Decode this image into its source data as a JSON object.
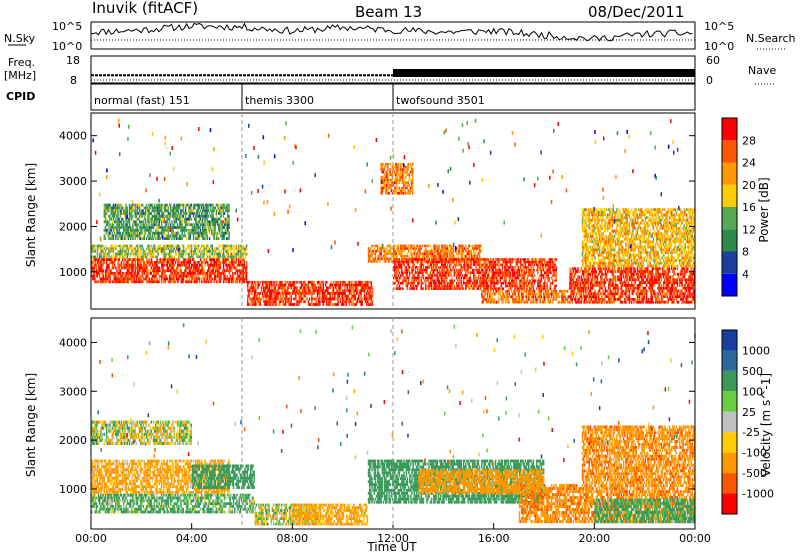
{
  "header": {
    "title": "Inuvik (fitACF)",
    "beam": "Beam 13",
    "date": "08/Dec/2011"
  },
  "colors": {
    "power": [
      "#0000ff",
      "#1a3fa0",
      "#2c8a4a",
      "#55aa55",
      "#ffcc00",
      "#ff9900",
      "#ff5500",
      "#ff0000"
    ],
    "velocity": [
      "#1a3fa0",
      "#2c6a9a",
      "#3a9a5a",
      "#66cc44",
      "#c0c0c0",
      "#ffcc00",
      "#ff9900",
      "#ff5500",
      "#ff0000"
    ]
  },
  "chart_data": [
    {
      "type": "line",
      "panel": "N.Sky / N.Search",
      "left_label": "N.Sky",
      "right_label": "N.Search",
      "left_ticks": [
        "10^5",
        "10^0"
      ],
      "right_ticks": [
        "10^5",
        "10^0"
      ],
      "x": [
        "00:00",
        "02:00",
        "04:00",
        "06:00",
        "08:00",
        "10:00",
        "12:00",
        "14:00",
        "16:00",
        "18:00",
        "20:00",
        "22:00",
        "24:00"
      ],
      "series": [
        {
          "name": "N.Sky",
          "values": [
            3.2,
            3.6,
            4.4,
            4.2,
            3.4,
            4.1,
            3.6,
            3.2,
            3.4,
            2.6,
            1.8,
            2.8,
            3.0
          ]
        },
        {
          "name": "N.Search",
          "values": [
            1.6,
            1.6,
            1.6,
            1.6,
            1.6,
            1.6,
            1.6,
            1.6,
            1.6,
            1.6,
            1.6,
            1.6,
            1.6
          ]
        }
      ],
      "xlim": [
        0,
        24
      ],
      "ylim": [
        0,
        5
      ]
    },
    {
      "type": "line",
      "panel": "Freq / Nave",
      "left_label": "Freq.",
      "left_unit": "[MHz]",
      "right_label": "Nave",
      "left_ticks": [
        "18",
        "8"
      ],
      "right_ticks": [
        "60",
        "0"
      ],
      "series": [
        {
          "name": "Freq",
          "segments": [
            {
              "x0": 0,
              "x1": 12,
              "value": 10.7
            },
            {
              "x0": 12,
              "x1": 24,
              "value": 11.6
            }
          ]
        },
        {
          "name": "Nave",
          "value": 2
        }
      ],
      "xlim": [
        0,
        24
      ],
      "ylim": [
        8,
        18
      ]
    },
    {
      "type": "table",
      "panel": "CPID",
      "label": "CPID",
      "modes": [
        {
          "name": "normal (fast) 151",
          "start": 0,
          "end": 6
        },
        {
          "name": "themis 3300",
          "start": 6,
          "end": 12
        },
        {
          "name": "twofsound 3501",
          "start": 12,
          "end": 24
        }
      ]
    },
    {
      "type": "heatmap",
      "panel": "Power",
      "ylabel": "Slant Range [km]",
      "xlim": [
        0,
        24
      ],
      "ylim": [
        180,
        4500
      ],
      "yticks": [
        1000,
        2000,
        3000,
        4000
      ],
      "colorbar": {
        "label": "Power [dB]",
        "ticks": [
          4,
          8,
          12,
          16,
          20,
          24,
          28
        ],
        "range": [
          0,
          32
        ]
      },
      "regions": [
        {
          "t0": 0.0,
          "t1": 6.2,
          "r0": 750,
          "r1": 1300,
          "level": 28
        },
        {
          "t0": 0.0,
          "t1": 6.2,
          "r0": 1300,
          "r1": 1600,
          "level": 16
        },
        {
          "t0": 0.5,
          "t1": 5.5,
          "r0": 1700,
          "r1": 2500,
          "level": 12
        },
        {
          "t0": 6.2,
          "t1": 11.2,
          "r0": 250,
          "r1": 800,
          "level": 28
        },
        {
          "t0": 11.0,
          "t1": 15.5,
          "r0": 1200,
          "r1": 1600,
          "level": 24
        },
        {
          "t0": 12.0,
          "t1": 18.5,
          "r0": 600,
          "r1": 1300,
          "level": 28
        },
        {
          "t0": 15.5,
          "t1": 19.0,
          "r0": 300,
          "r1": 600,
          "level": 24
        },
        {
          "t0": 19.0,
          "t1": 24.0,
          "r0": 300,
          "r1": 1100,
          "level": 28
        },
        {
          "t0": 19.5,
          "t1": 24.0,
          "r0": 1100,
          "r1": 2400,
          "level": 20
        },
        {
          "t0": 11.5,
          "t1": 12.8,
          "r0": 2700,
          "r1": 3400,
          "level": 24
        }
      ]
    },
    {
      "type": "heatmap",
      "panel": "Velocity",
      "ylabel": "Slant Range [km]",
      "xlabel": "Time UT",
      "xticks": [
        "00:00",
        "04:00",
        "08:00",
        "12:00",
        "16:00",
        "20:00",
        "00:00"
      ],
      "xlim": [
        0,
        24
      ],
      "ylim": [
        180,
        4500
      ],
      "yticks": [
        1000,
        2000,
        3000,
        4000
      ],
      "colorbar": {
        "label": "Velocity [m s^-1]",
        "ticks": [
          1000,
          500,
          100,
          25,
          -25,
          -100,
          -500,
          -1000
        ]
      },
      "regions": [
        {
          "t0": 0.0,
          "t1": 5.5,
          "r0": 900,
          "r1": 1600,
          "level": -200
        },
        {
          "t0": 0.0,
          "t1": 6.5,
          "r0": 500,
          "r1": 900,
          "level": 150
        },
        {
          "t0": 4.0,
          "t1": 6.5,
          "r0": 1000,
          "r1": 1500,
          "level": 300
        },
        {
          "t0": 0.0,
          "t1": 4.0,
          "r0": 1900,
          "r1": 2400,
          "level": 0
        },
        {
          "t0": 6.5,
          "t1": 9.0,
          "r0": 250,
          "r1": 700,
          "level": 0
        },
        {
          "t0": 8.0,
          "t1": 11.0,
          "r0": 250,
          "r1": 700,
          "level": -200
        },
        {
          "t0": 11.0,
          "t1": 18.0,
          "r0": 700,
          "r1": 1600,
          "level": 300
        },
        {
          "t0": 13.0,
          "t1": 18.0,
          "r0": 900,
          "r1": 1400,
          "level": -300
        },
        {
          "t0": 17.0,
          "t1": 24.0,
          "r0": 300,
          "r1": 1100,
          "level": -400
        },
        {
          "t0": 20.0,
          "t1": 24.0,
          "r0": 300,
          "r1": 800,
          "level": 200
        },
        {
          "t0": 19.5,
          "t1": 24.0,
          "r0": 1100,
          "r1": 2300,
          "level": -400
        }
      ]
    }
  ]
}
